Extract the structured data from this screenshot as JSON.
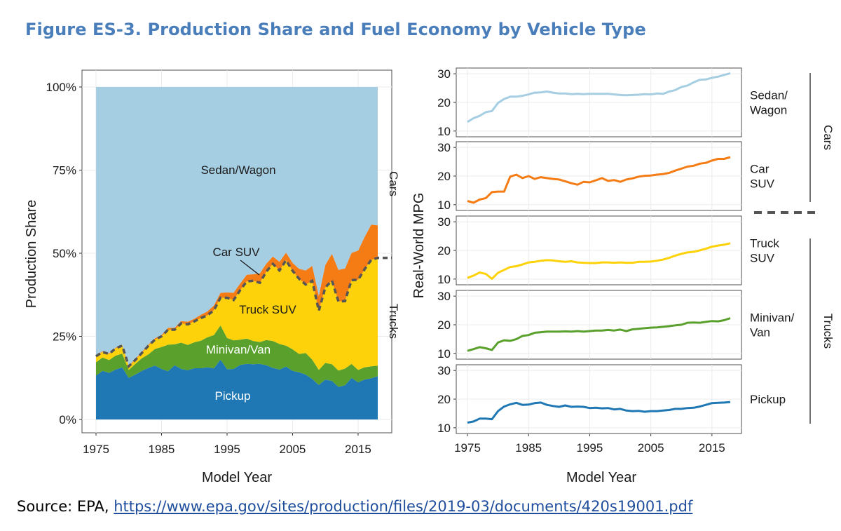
{
  "figure_title": "Figure ES-3. Production Share and Fuel Economy by Vehicle Type",
  "colors": {
    "title": "#4a7ebb",
    "sedan_wagon": "#a6cee3",
    "car_suv": "#f57c14",
    "truck_suv": "#fdd20a",
    "minivan_van": "#5aa02c",
    "pickup": "#1f78b4",
    "divider": "#555555"
  },
  "source": {
    "prefix": "Source: EPA, ",
    "link_text": "https://www.epa.gov/sites/production/files/2019-03/documents/420s19001.pdf"
  },
  "chart_data": [
    {
      "type": "area",
      "stacked": true,
      "xlabel": "Model Year",
      "ylabel": "Production Share",
      "xlim": [
        1975,
        2018
      ],
      "ylim": [
        0,
        100
      ],
      "x_ticks": [
        "1975",
        "1985",
        "1995",
        "2005",
        "2015"
      ],
      "y_ticks": [
        "0%",
        "25%",
        "50%",
        "75%",
        "100%"
      ],
      "grid": true,
      "group_labels": [
        "Cars",
        "Trucks"
      ],
      "annotation": "Car SUV",
      "x": [
        1975,
        1976,
        1977,
        1978,
        1979,
        1980,
        1981,
        1982,
        1983,
        1984,
        1985,
        1986,
        1987,
        1988,
        1989,
        1990,
        1991,
        1992,
        1993,
        1994,
        1995,
        1996,
        1997,
        1998,
        1999,
        2000,
        2001,
        2002,
        2003,
        2004,
        2005,
        2006,
        2007,
        2008,
        2009,
        2010,
        2011,
        2012,
        2013,
        2014,
        2015,
        2016,
        2017,
        2018
      ],
      "series": [
        {
          "name": "Pickup",
          "values": [
            13.2,
            14.6,
            14.0,
            15.0,
            15.7,
            12.5,
            13.5,
            14.6,
            15.5,
            16.2,
            15.2,
            14.5,
            16.3,
            15.2,
            14.8,
            15.4,
            15.4,
            15.7,
            15.4,
            18.0,
            15.1,
            15.2,
            16.4,
            16.7,
            16.6,
            16.7,
            16.3,
            15.5,
            15.0,
            15.9,
            14.6,
            14.2,
            13.5,
            12.2,
            10.4,
            12.0,
            11.6,
            9.8,
            10.3,
            12.5,
            11.2,
            12.0,
            12.4,
            13.0
          ]
        },
        {
          "name": "Minivan/Van",
          "values": [
            4.0,
            4.0,
            3.9,
            4.2,
            4.1,
            2.4,
            3.2,
            3.8,
            4.1,
            5.0,
            6.6,
            8.0,
            6.3,
            7.9,
            7.6,
            7.8,
            8.3,
            9.0,
            10.0,
            10.3,
            9.4,
            8.6,
            7.6,
            7.6,
            7.0,
            6.6,
            7.6,
            8.1,
            7.7,
            6.3,
            6.5,
            5.5,
            6.5,
            5.8,
            4.5,
            5.0,
            5.0,
            4.9,
            5.0,
            4.2,
            3.7,
            3.7,
            3.6,
            3.2
          ]
        },
        {
          "name": "Truck SUV",
          "values": [
            1.8,
            1.7,
            1.8,
            2.2,
            2.4,
            1.1,
            1.2,
            1.6,
            2.6,
            2.8,
            3.2,
            4.5,
            4.4,
            5.8,
            6.2,
            6.3,
            6.8,
            6.6,
            7.5,
            8.3,
            12.1,
            12.1,
            14.9,
            17.2,
            18.1,
            17.8,
            20.6,
            23.2,
            22.1,
            25.7,
            23.6,
            22.6,
            20.6,
            23.7,
            17.8,
            22.7,
            25.2,
            20.8,
            20.3,
            25.2,
            27.1,
            29.5,
            32.0,
            32.4
          ]
        },
        {
          "name": "Car SUV",
          "values": [
            0.2,
            0.2,
            0.2,
            0.2,
            0.2,
            0.2,
            0.3,
            0.3,
            0.3,
            0.4,
            0.4,
            0.6,
            0.6,
            0.7,
            0.8,
            0.8,
            1.0,
            1.2,
            1.4,
            1.5,
            1.6,
            2.2,
            2.0,
            2.0,
            2.0,
            2.8,
            2.4,
            2.2,
            2.6,
            2.3,
            2.4,
            3.0,
            4.2,
            4.5,
            4.5,
            6.8,
            8.0,
            9.5,
            9.8,
            8.2,
            8.8,
            9.7,
            10.6,
            9.8
          ]
        },
        {
          "name": "Sedan/Wagon",
          "values": [
            80.8,
            79.5,
            80.1,
            78.4,
            77.6,
            83.8,
            81.8,
            79.7,
            77.5,
            75.6,
            74.6,
            72.4,
            72.4,
            70.4,
            70.6,
            69.7,
            68.5,
            67.5,
            65.7,
            61.9,
            61.8,
            61.9,
            59.1,
            56.5,
            56.3,
            56.1,
            53.1,
            51.0,
            52.6,
            49.8,
            52.9,
            54.7,
            55.2,
            53.8,
            62.8,
            53.5,
            50.2,
            55.0,
            54.6,
            49.9,
            49.2,
            45.1,
            41.4,
            41.6
          ]
        }
      ]
    },
    {
      "type": "line",
      "facets": [
        {
          "name": "Sedan/Wagon",
          "label_lines": [
            "Sedan/",
            "Wagon"
          ],
          "group": "Cars",
          "x": [
            1975,
            1976,
            1977,
            1978,
            1979,
            1980,
            1981,
            1982,
            1983,
            1984,
            1985,
            1986,
            1987,
            1988,
            1989,
            1990,
            1991,
            1992,
            1993,
            1994,
            1995,
            1996,
            1997,
            1998,
            1999,
            2000,
            2001,
            2002,
            2003,
            2004,
            2005,
            2006,
            2007,
            2008,
            2009,
            2010,
            2011,
            2012,
            2013,
            2014,
            2015,
            2016,
            2017,
            2018
          ],
          "values": [
            13.2,
            14.5,
            15.3,
            16.6,
            17.0,
            19.8,
            21.2,
            22.0,
            22.0,
            22.3,
            22.8,
            23.4,
            23.5,
            23.8,
            23.4,
            23.1,
            23.1,
            22.9,
            23.0,
            22.9,
            23.0,
            23.0,
            23.0,
            23.0,
            22.8,
            22.6,
            22.5,
            22.6,
            22.7,
            22.9,
            22.8,
            23.1,
            23.0,
            23.8,
            24.3,
            25.4,
            25.9,
            27.0,
            27.9,
            28.0,
            28.6,
            29.0,
            29.6,
            30.2
          ]
        },
        {
          "name": "Car SUV",
          "label_lines": [
            "Car",
            "SUV"
          ],
          "group": "Cars",
          "x": [
            1975,
            1976,
            1977,
            1978,
            1979,
            1980,
            1981,
            1982,
            1983,
            1984,
            1985,
            1986,
            1987,
            1988,
            1989,
            1990,
            1991,
            1992,
            1993,
            1994,
            1995,
            1996,
            1997,
            1998,
            1999,
            2000,
            2001,
            2002,
            2003,
            2004,
            2005,
            2006,
            2007,
            2008,
            2009,
            2010,
            2011,
            2012,
            2013,
            2014,
            2015,
            2016,
            2017,
            2018
          ],
          "values": [
            11.3,
            10.7,
            11.8,
            12.3,
            14.4,
            14.6,
            14.6,
            19.8,
            20.5,
            19.3,
            20.0,
            19.0,
            19.6,
            19.3,
            19.0,
            18.8,
            18.2,
            17.5,
            17.0,
            18.0,
            17.8,
            18.5,
            19.3,
            18.3,
            18.6,
            18.0,
            18.8,
            19.2,
            19.8,
            20.1,
            20.2,
            20.5,
            20.7,
            21.1,
            21.9,
            22.6,
            23.3,
            23.6,
            24.3,
            24.6,
            25.4,
            26.0,
            26.0,
            26.6
          ]
        },
        {
          "name": "Truck SUV",
          "label_lines": [
            "Truck",
            "SUV"
          ],
          "group": "Trucks",
          "x": [
            1975,
            1976,
            1977,
            1978,
            1979,
            1980,
            1981,
            1982,
            1983,
            1984,
            1985,
            1986,
            1987,
            1988,
            1989,
            1990,
            1991,
            1992,
            1993,
            1994,
            1995,
            1996,
            1997,
            1998,
            1999,
            2000,
            2001,
            2002,
            2003,
            2004,
            2005,
            2006,
            2007,
            2008,
            2009,
            2010,
            2011,
            2012,
            2013,
            2014,
            2015,
            2016,
            2017,
            2018
          ],
          "values": [
            10.4,
            11.2,
            12.3,
            11.8,
            10.1,
            12.2,
            13.2,
            14.2,
            14.5,
            15.1,
            15.8,
            16.0,
            16.4,
            16.6,
            16.5,
            16.2,
            16.0,
            16.2,
            15.8,
            15.7,
            15.6,
            15.6,
            15.8,
            15.8,
            15.7,
            15.8,
            15.7,
            15.7,
            16.0,
            16.0,
            16.1,
            16.4,
            16.8,
            17.4,
            18.2,
            18.8,
            19.3,
            19.5,
            20.0,
            20.6,
            21.3,
            21.7,
            22.0,
            22.5
          ]
        },
        {
          "name": "Minivan/Van",
          "label_lines": [
            "Minivan/",
            "Van"
          ],
          "group": "Trucks",
          "x": [
            1975,
            1976,
            1977,
            1978,
            1979,
            1980,
            1981,
            1982,
            1983,
            1984,
            1985,
            1986,
            1987,
            1988,
            1989,
            1990,
            1991,
            1992,
            1993,
            1994,
            1995,
            1996,
            1997,
            1998,
            1999,
            2000,
            2001,
            2002,
            2003,
            2004,
            2005,
            2006,
            2007,
            2008,
            2009,
            2010,
            2011,
            2012,
            2013,
            2014,
            2015,
            2016,
            2017,
            2018
          ],
          "values": [
            10.9,
            11.5,
            12.2,
            11.8,
            11.2,
            13.8,
            14.6,
            14.4,
            15.0,
            16.1,
            16.4,
            17.2,
            17.4,
            17.6,
            17.6,
            17.6,
            17.7,
            17.6,
            17.8,
            17.6,
            17.8,
            18.0,
            18.0,
            18.2,
            18.0,
            18.3,
            17.8,
            18.4,
            18.6,
            18.8,
            19.0,
            19.1,
            19.3,
            19.5,
            19.8,
            20.0,
            20.7,
            20.8,
            20.7,
            21.0,
            21.3,
            21.2,
            21.6,
            22.3
          ]
        },
        {
          "name": "Pickup",
          "label_lines": [
            "Pickup"
          ],
          "group": "Trucks",
          "x": [
            1975,
            1976,
            1977,
            1978,
            1979,
            1980,
            1981,
            1982,
            1983,
            1984,
            1985,
            1986,
            1987,
            1988,
            1989,
            1990,
            1991,
            1992,
            1993,
            1994,
            1995,
            1996,
            1997,
            1998,
            1999,
            2000,
            2001,
            2002,
            2003,
            2004,
            2005,
            2006,
            2007,
            2008,
            2009,
            2010,
            2011,
            2012,
            2013,
            2014,
            2015,
            2016,
            2017,
            2018
          ],
          "values": [
            11.8,
            12.2,
            13.2,
            13.2,
            13.0,
            15.8,
            17.4,
            18.2,
            18.7,
            18.0,
            18.1,
            18.6,
            18.8,
            18.0,
            17.6,
            17.3,
            17.8,
            17.3,
            17.4,
            17.3,
            16.9,
            17.0,
            16.8,
            16.9,
            16.4,
            16.6,
            16.0,
            15.8,
            15.9,
            15.6,
            15.8,
            15.8,
            16.0,
            16.2,
            16.6,
            16.6,
            16.9,
            17.0,
            17.4,
            18.0,
            18.6,
            18.7,
            18.8,
            19.0
          ]
        }
      ],
      "xlabel": "Model Year",
      "ylabel": "Real-World MPG",
      "xlim": [
        1975,
        2018
      ],
      "ylim": [
        8,
        32
      ],
      "x_ticks": [
        "1975",
        "1985",
        "1995",
        "2005",
        "2015"
      ],
      "y_ticks": [
        "10",
        "20",
        "30"
      ],
      "grid": true,
      "group_labels": [
        "Cars",
        "Trucks"
      ]
    }
  ]
}
